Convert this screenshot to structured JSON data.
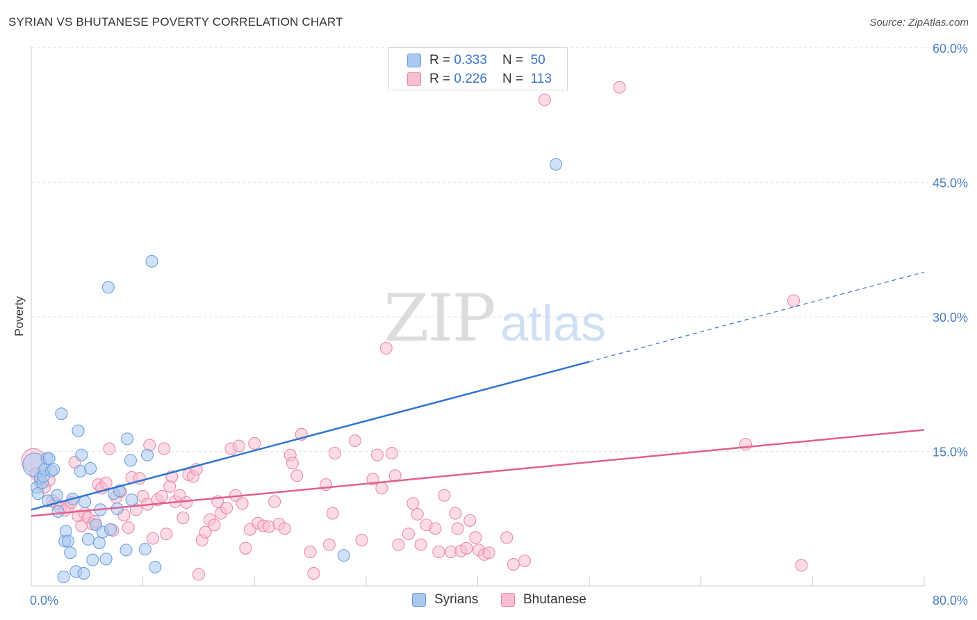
{
  "title": "SYRIAN VS BHUTANESE POVERTY CORRELATION CHART",
  "source": "Source: ZipAtlas.com",
  "watermark": {
    "zip": "ZIP",
    "atlas": "atlas"
  },
  "colors": {
    "syrians_fill": "#a9c8f0",
    "syrians_stroke": "#6f9fdc",
    "syrians_line": "#2f74cf",
    "bhutanese_fill": "#f7bfd0",
    "bhutanese_stroke": "#e98aa9",
    "bhutanese_line": "#e0608e",
    "tick_text": "#4a7fc1",
    "grid": "#e2e2e2"
  },
  "legend_top": {
    "rows": [
      {
        "r_label": "R =",
        "r_value": "0.333",
        "n_label": "N =",
        "n_value": "50"
      },
      {
        "r_label": "R =",
        "r_value": "0.226",
        "n_label": "N =",
        "n_value": "113"
      }
    ]
  },
  "legend_bottom": [
    "Syrians",
    "Bhutanese"
  ],
  "chart_data": {
    "type": "scatter",
    "title": "SYRIAN VS BHUTANESE POVERTY CORRELATION CHART",
    "xlabel": "",
    "ylabel": "Poverty",
    "xlim": [
      0,
      80
    ],
    "ylim": [
      0,
      62
    ],
    "x_tick_labels": [
      "0.0%",
      "80.0%"
    ],
    "y_ticks": [
      15,
      30,
      45,
      60
    ],
    "y_tick_labels": [
      "15.0%",
      "30.0%",
      "45.0%",
      "60.0%"
    ],
    "grid": true,
    "legend_position": "top-center",
    "series": [
      {
        "name": "Syrians",
        "r": 0.333,
        "n": 50,
        "trend": {
          "x_start": 0,
          "y_start": 8.5,
          "x_solid_end": 50,
          "y_solid_end": 25,
          "x_dash_end": 80,
          "y_dash_end": 35
        },
        "points": [
          [
            0.3,
            13.5
          ],
          [
            0.5,
            11.0
          ],
          [
            0.6,
            10.3
          ],
          [
            0.8,
            12.0
          ],
          [
            1.0,
            11.5
          ],
          [
            1.1,
            12.2
          ],
          [
            1.2,
            13.0
          ],
          [
            1.4,
            14.2
          ],
          [
            1.5,
            9.5
          ],
          [
            1.6,
            14.2
          ],
          [
            1.8,
            12.8
          ],
          [
            2.0,
            13.0
          ],
          [
            2.3,
            10.1
          ],
          [
            2.4,
            8.3
          ],
          [
            2.7,
            19.2
          ],
          [
            2.9,
            1.0
          ],
          [
            3.0,
            5.0
          ],
          [
            3.1,
            6.1
          ],
          [
            3.3,
            5.0
          ],
          [
            3.5,
            3.7
          ],
          [
            3.7,
            9.7
          ],
          [
            4.0,
            1.6
          ],
          [
            4.2,
            17.3
          ],
          [
            4.5,
            14.6
          ],
          [
            4.4,
            12.8
          ],
          [
            4.7,
            1.4
          ],
          [
            4.8,
            9.4
          ],
          [
            5.1,
            5.2
          ],
          [
            5.3,
            13.1
          ],
          [
            5.5,
            2.9
          ],
          [
            5.8,
            6.8
          ],
          [
            6.1,
            4.8
          ],
          [
            6.2,
            8.5
          ],
          [
            6.4,
            6.0
          ],
          [
            6.7,
            3.0
          ],
          [
            6.9,
            33.3
          ],
          [
            7.1,
            6.3
          ],
          [
            7.4,
            10.3
          ],
          [
            7.7,
            8.6
          ],
          [
            7.9,
            10.6
          ],
          [
            8.5,
            4.0
          ],
          [
            8.6,
            16.4
          ],
          [
            8.9,
            14.0
          ],
          [
            9.0,
            9.6
          ],
          [
            10.2,
            4.1
          ],
          [
            10.4,
            14.6
          ],
          [
            10.8,
            36.2
          ],
          [
            11.1,
            2.1
          ],
          [
            28.0,
            3.4
          ],
          [
            47.0,
            47.0
          ]
        ]
      },
      {
        "name": "Bhutanese",
        "r": 0.226,
        "n": 113,
        "trend": {
          "x_start": 0,
          "y_start": 7.8,
          "x_end": 80,
          "y_end": 17.4
        },
        "points": [
          [
            0.2,
            14.0
          ],
          [
            0.4,
            12.5
          ],
          [
            0.8,
            11.5
          ],
          [
            1.2,
            11.0
          ],
          [
            1.6,
            11.8
          ],
          [
            1.9,
            9.5
          ],
          [
            2.2,
            9.2
          ],
          [
            2.6,
            8.7
          ],
          [
            3.0,
            8.4
          ],
          [
            3.3,
            8.8
          ],
          [
            3.6,
            9.3
          ],
          [
            3.9,
            13.8
          ],
          [
            4.2,
            7.8
          ],
          [
            4.5,
            6.7
          ],
          [
            4.8,
            8.1
          ],
          [
            5.1,
            7.6
          ],
          [
            5.5,
            6.9
          ],
          [
            5.7,
            7.2
          ],
          [
            6.0,
            11.3
          ],
          [
            6.3,
            10.9
          ],
          [
            6.7,
            11.5
          ],
          [
            7.0,
            15.3
          ],
          [
            7.3,
            6.2
          ],
          [
            7.6,
            9.9
          ],
          [
            8.0,
            10.5
          ],
          [
            8.3,
            7.9
          ],
          [
            8.7,
            6.5
          ],
          [
            9.0,
            12.1
          ],
          [
            9.4,
            8.5
          ],
          [
            9.7,
            12.0
          ],
          [
            10.0,
            10.0
          ],
          [
            10.4,
            9.1
          ],
          [
            10.6,
            15.7
          ],
          [
            10.9,
            5.3
          ],
          [
            11.3,
            9.6
          ],
          [
            11.7,
            10.0
          ],
          [
            11.9,
            15.3
          ],
          [
            12.1,
            5.8
          ],
          [
            12.4,
            11.1
          ],
          [
            12.6,
            12.2
          ],
          [
            12.9,
            9.4
          ],
          [
            13.3,
            10.1
          ],
          [
            13.6,
            7.6
          ],
          [
            13.9,
            9.3
          ],
          [
            14.1,
            12.4
          ],
          [
            14.5,
            12.2
          ],
          [
            14.8,
            13.0
          ],
          [
            15.0,
            1.3
          ],
          [
            15.3,
            5.1
          ],
          [
            15.6,
            6.0
          ],
          [
            16.0,
            7.4
          ],
          [
            16.4,
            6.8
          ],
          [
            16.7,
            9.4
          ],
          [
            17.0,
            8.1
          ],
          [
            17.5,
            8.7
          ],
          [
            17.9,
            15.3
          ],
          [
            18.3,
            10.1
          ],
          [
            18.6,
            15.6
          ],
          [
            18.9,
            9.2
          ],
          [
            19.2,
            4.2
          ],
          [
            19.6,
            6.3
          ],
          [
            20.0,
            15.9
          ],
          [
            20.3,
            7.0
          ],
          [
            20.8,
            6.7
          ],
          [
            21.3,
            6.6
          ],
          [
            21.8,
            9.4
          ],
          [
            22.2,
            6.9
          ],
          [
            22.7,
            6.4
          ],
          [
            23.2,
            14.6
          ],
          [
            23.4,
            13.7
          ],
          [
            23.8,
            12.3
          ],
          [
            24.2,
            16.9
          ],
          [
            25.0,
            3.8
          ],
          [
            25.3,
            1.4
          ],
          [
            26.4,
            11.3
          ],
          [
            26.7,
            4.6
          ],
          [
            27.0,
            8.1
          ],
          [
            27.2,
            14.8
          ],
          [
            29.0,
            16.2
          ],
          [
            29.6,
            5.1
          ],
          [
            30.6,
            11.9
          ],
          [
            31.0,
            14.6
          ],
          [
            31.4,
            10.9
          ],
          [
            31.8,
            26.5
          ],
          [
            32.3,
            14.8
          ],
          [
            32.6,
            12.3
          ],
          [
            32.9,
            4.6
          ],
          [
            33.8,
            5.8
          ],
          [
            34.2,
            9.2
          ],
          [
            34.6,
            8.0
          ],
          [
            34.9,
            4.6
          ],
          [
            35.4,
            6.8
          ],
          [
            36.2,
            6.4
          ],
          [
            36.5,
            3.8
          ],
          [
            37.0,
            10.1
          ],
          [
            37.6,
            3.8
          ],
          [
            38.0,
            8.1
          ],
          [
            38.2,
            6.4
          ],
          [
            38.5,
            3.9
          ],
          [
            39.0,
            4.2
          ],
          [
            39.3,
            7.3
          ],
          [
            39.8,
            5.4
          ],
          [
            40.1,
            4.0
          ],
          [
            40.6,
            3.5
          ],
          [
            41.0,
            3.7
          ],
          [
            42.6,
            5.4
          ],
          [
            43.2,
            2.4
          ],
          [
            44.2,
            2.8
          ],
          [
            46.0,
            54.2
          ],
          [
            52.7,
            55.6
          ],
          [
            64.0,
            15.8
          ],
          [
            68.3,
            31.8
          ],
          [
            69.0,
            2.3
          ]
        ]
      }
    ]
  }
}
